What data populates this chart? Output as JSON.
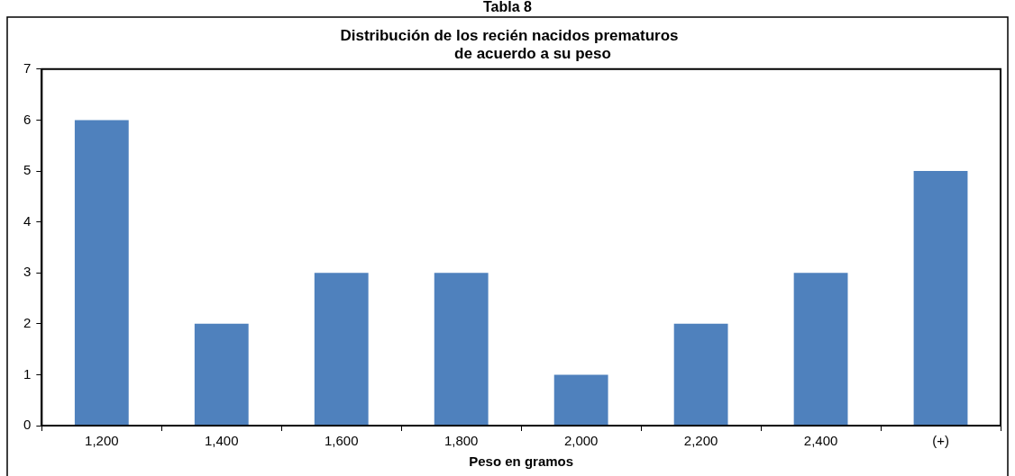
{
  "chart_data": {
    "type": "bar",
    "title": "Distribución de los recién nacidos prematuros\n           de acuerdo a su peso",
    "annotations": [
      "Tabla 8"
    ],
    "xlabel": "Peso en gramos",
    "categories": [
      "1,200",
      "1,400",
      "1,600",
      "1,800",
      "2,000",
      "2,200",
      "2,400",
      "(+)"
    ],
    "values": [
      6,
      2,
      3,
      3,
      1,
      2,
      3,
      5
    ],
    "color": "#4f81bd",
    "ylim": [
      0,
      7
    ],
    "yticks": [
      0,
      1,
      2,
      3,
      4,
      5,
      6,
      7
    ],
    "grid": false,
    "legend": false
  }
}
